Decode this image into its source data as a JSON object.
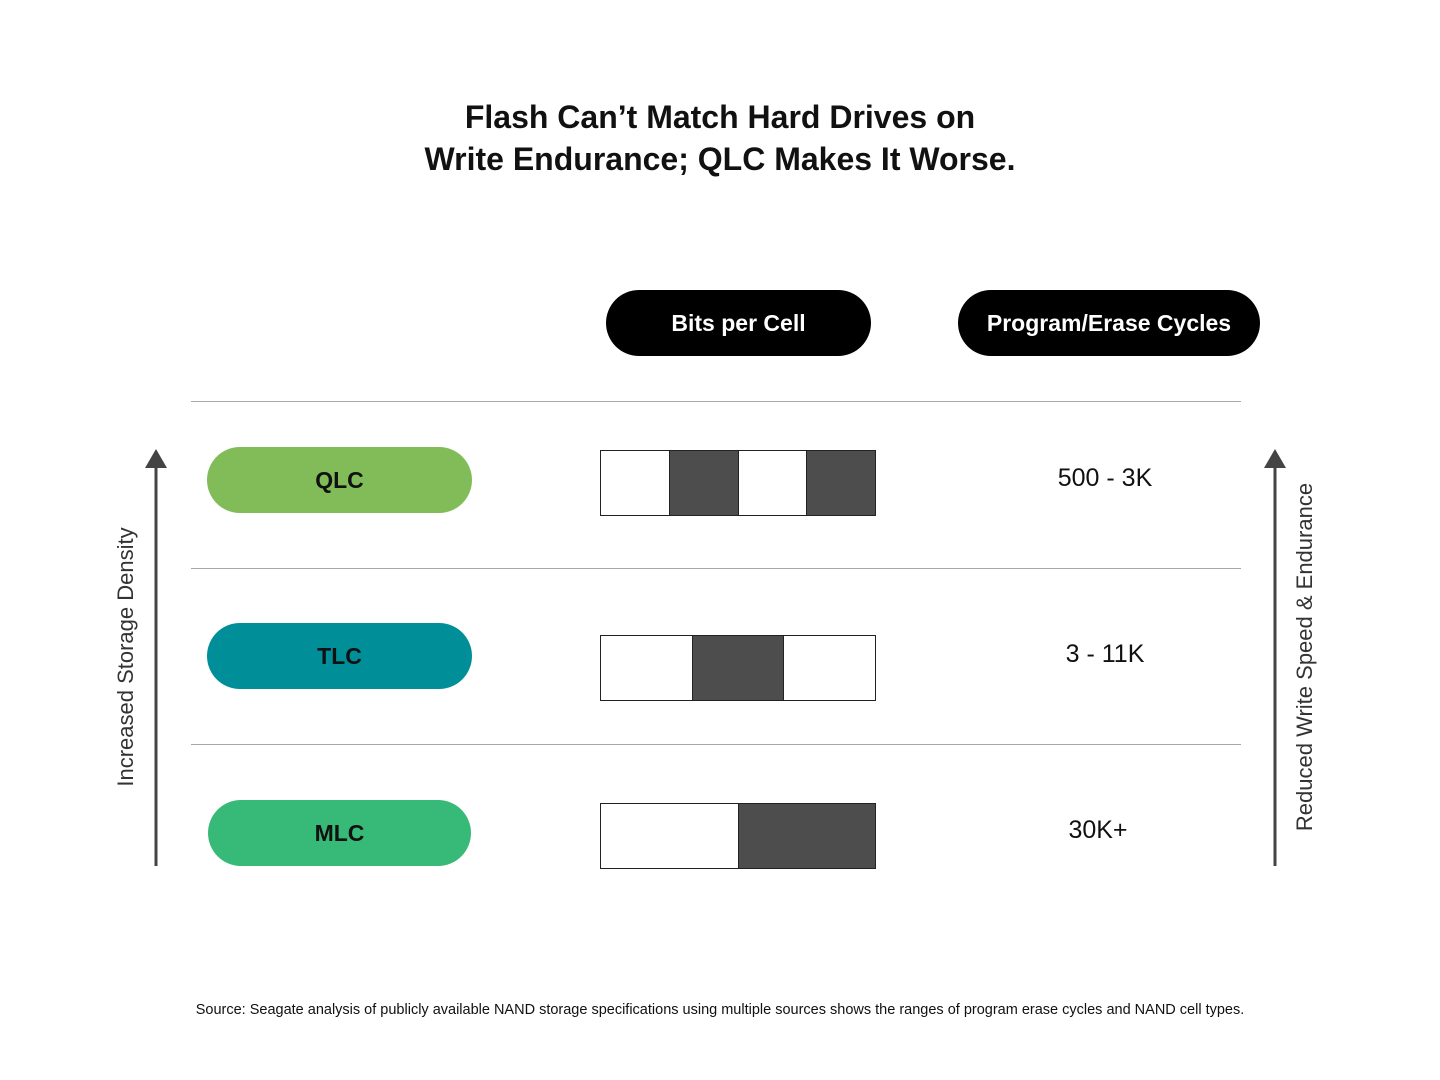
{
  "title": {
    "line1": "Flash Can’t Match Hard Drives on",
    "line2": "Write Endurance; QLC Makes It Worse."
  },
  "headers": {
    "bits_per_cell": "Bits per Cell",
    "pe_cycles": "Program/Erase Cycles"
  },
  "rows": [
    {
      "type": "QLC",
      "color": "#82bc59",
      "bits": 4,
      "filled": [
        false,
        true,
        false,
        true
      ],
      "pe_cycles": "500 - 3K"
    },
    {
      "type": "TLC",
      "color": "#008f98",
      "bits": 3,
      "filled": [
        false,
        true,
        false
      ],
      "pe_cycles": "3 - 11K"
    },
    {
      "type": "MLC",
      "color": "#37b977",
      "bits": 2,
      "filled": [
        false,
        true
      ],
      "pe_cycles": "30K+"
    }
  ],
  "left_axis_label": "Increased Storage Density",
  "right_axis_label": "Reduced Write Speed & Endurance",
  "source": "Source: Seagate analysis of publicly available NAND storage specifications using multiple sources shows the ranges of program erase cycles and NAND cell types."
}
